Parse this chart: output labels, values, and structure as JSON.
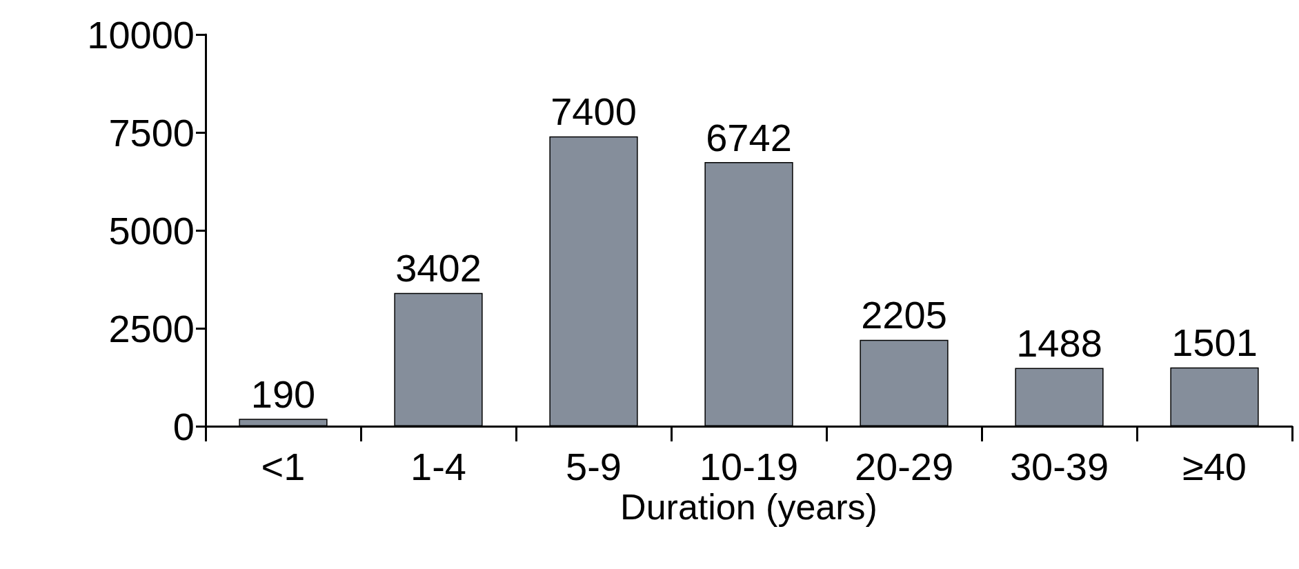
{
  "chart_data": {
    "type": "bar",
    "categories": [
      "<1",
      "1-4",
      "5-9",
      "10-19",
      "20-29",
      "30-39",
      "≥40"
    ],
    "values": [
      190,
      3402,
      7400,
      6742,
      2205,
      1488,
      1501
    ],
    "color": "#858e9b",
    "xlabel": "Duration (years)",
    "ylim": [
      0,
      10000
    ],
    "yticks": [
      0,
      2500,
      5000,
      7500,
      10000
    ],
    "data_labels": true
  }
}
